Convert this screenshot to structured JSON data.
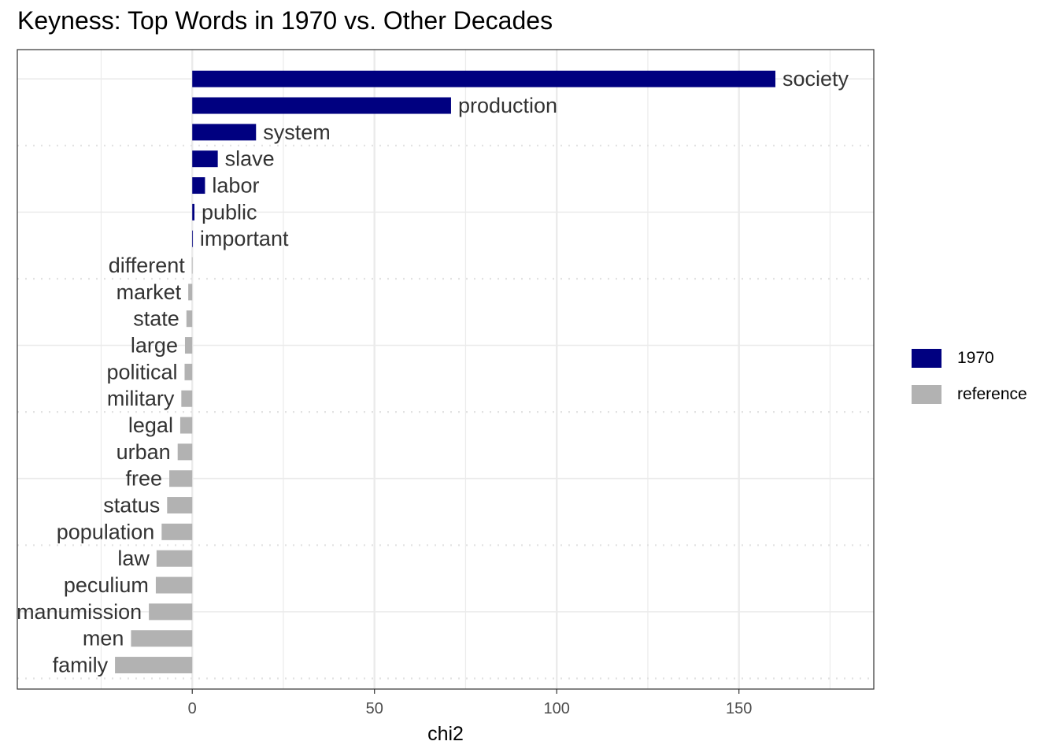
{
  "chart_data": {
    "type": "bar",
    "orientation": "horizontal",
    "title": "Keyness: Top Words in 1970 vs. Other Decades",
    "xlabel": "chi2",
    "ylabel": "",
    "xlim": [
      -48,
      187
    ],
    "xticks": [
      0,
      50,
      100,
      150
    ],
    "grid": true,
    "legend_position": "right",
    "legend": [
      {
        "name": "1970",
        "color": "#000080"
      },
      {
        "name": "reference",
        "color": "#b2b2b2"
      }
    ],
    "categories": [
      "society",
      "production",
      "system",
      "slave",
      "labor",
      "public",
      "important",
      "different",
      "market",
      "state",
      "large",
      "political",
      "military",
      "legal",
      "urban",
      "free",
      "status",
      "population",
      "law",
      "peculium",
      "manumission",
      "men",
      "family"
    ],
    "values": [
      160,
      71,
      17.5,
      7,
      3.5,
      0.6,
      0.15,
      -0.1,
      -1.1,
      -1.6,
      -2.0,
      -2.1,
      -3.0,
      -3.3,
      -4.0,
      -6.3,
      -6.9,
      -8.4,
      -9.8,
      -10.0,
      -11.9,
      -16.8,
      -21.2
    ],
    "groups": [
      "1970",
      "1970",
      "1970",
      "1970",
      "1970",
      "1970",
      "1970",
      "reference",
      "reference",
      "reference",
      "reference",
      "reference",
      "reference",
      "reference",
      "reference",
      "reference",
      "reference",
      "reference",
      "reference",
      "reference",
      "reference",
      "reference",
      "reference"
    ]
  }
}
